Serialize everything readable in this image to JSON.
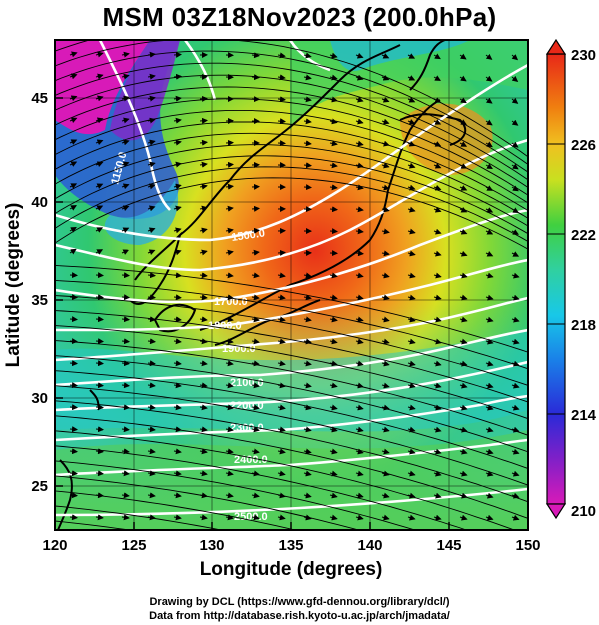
{
  "title": "MSM 03Z18Nov2023 (200.0hPa)",
  "x_axis": {
    "label": "Longitude (degrees)",
    "ticks": [
      "120",
      "125",
      "130",
      "135",
      "140",
      "145",
      "150"
    ],
    "range": [
      120,
      150
    ]
  },
  "y_axis": {
    "label": "Latitude  (degrees)",
    "ticks": [
      "25",
      "30",
      "35",
      "40",
      "45"
    ],
    "range": [
      22.5,
      47.5
    ]
  },
  "colorbar": {
    "ticks": [
      "210",
      "214",
      "218",
      "222",
      "226",
      "230"
    ],
    "range": [
      210,
      230
    ],
    "colors": [
      "#d01ab0",
      "#2a2ad8",
      "#18c8e8",
      "#3cd060",
      "#d8e020",
      "#f08010",
      "#e82818"
    ]
  },
  "contour_labels": [
    "1150.0",
    "1500.0",
    "1700.0",
    "1800.0",
    "1900.0",
    "2100.0",
    "2200.0",
    "2300.0",
    "2400.0",
    "2500.0"
  ],
  "credits": {
    "line1": "Drawing by DCL (https://www.gfd-dennou.org/library/dcl/)",
    "line2": "Data from http://database.rish.kyoto-u.ac.jp/arch/jmadata/"
  }
}
